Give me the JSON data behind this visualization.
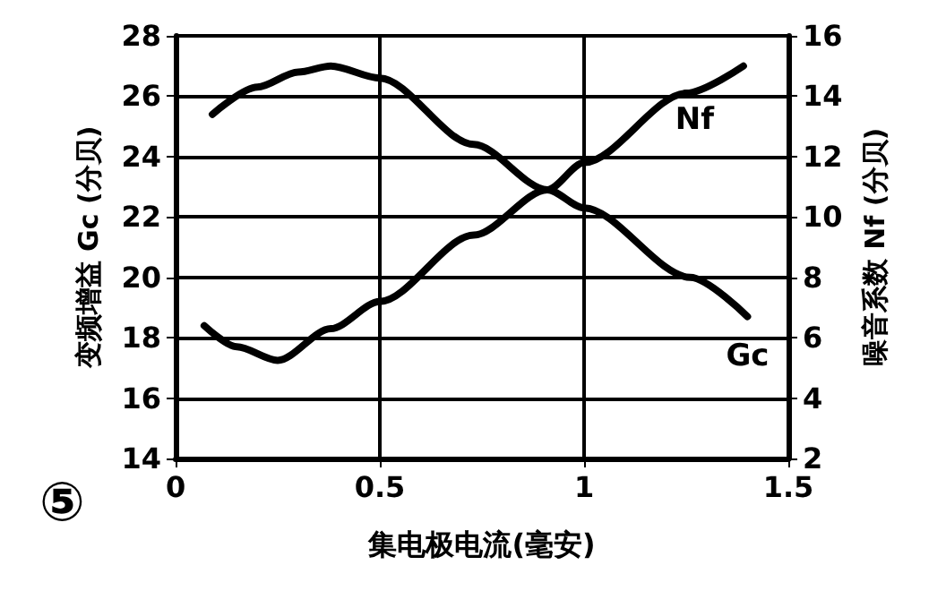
{
  "chart_data": {
    "type": "line",
    "xlabel": "集电极电流(毫安)",
    "ylabel": "变频增益 Gc (分贝)",
    "y2label": "噪音系数 Nf (分贝)",
    "annotations": [
      "⑤"
    ],
    "series": [
      {
        "name": "Gc",
        "color": "#000000",
        "x": [
          0.09,
          0.2,
          0.3,
          0.38,
          0.5,
          0.73,
          0.91,
          1.0,
          1.26,
          1.4
        ],
        "values": [
          25.4,
          26.3,
          26.8,
          27.0,
          26.6,
          24.4,
          22.9,
          22.3,
          20.0,
          18.7
        ]
      },
      {
        "name": "Nf",
        "color": "#000000",
        "axis": "y2",
        "x": [
          0.07,
          0.15,
          0.25,
          0.38,
          0.5,
          0.73,
          0.91,
          1.0,
          1.25,
          1.39
        ],
        "values": [
          6.4,
          5.7,
          5.25,
          6.3,
          7.2,
          9.4,
          10.9,
          11.8,
          14.1,
          15.0
        ]
      }
    ],
    "xlim": [
      0,
      1.5
    ],
    "xticks": [
      0,
      0.5,
      1,
      1.5
    ],
    "ylim": [
      14,
      28
    ],
    "yticks": [
      14,
      16,
      18,
      20,
      22,
      24,
      26,
      28
    ],
    "y2lim": [
      2,
      16
    ],
    "y2ticks": [
      2,
      4,
      6,
      8,
      10,
      12,
      14,
      16
    ],
    "grid": true,
    "legend": false,
    "marker": "none",
    "line_style": "solid"
  }
}
